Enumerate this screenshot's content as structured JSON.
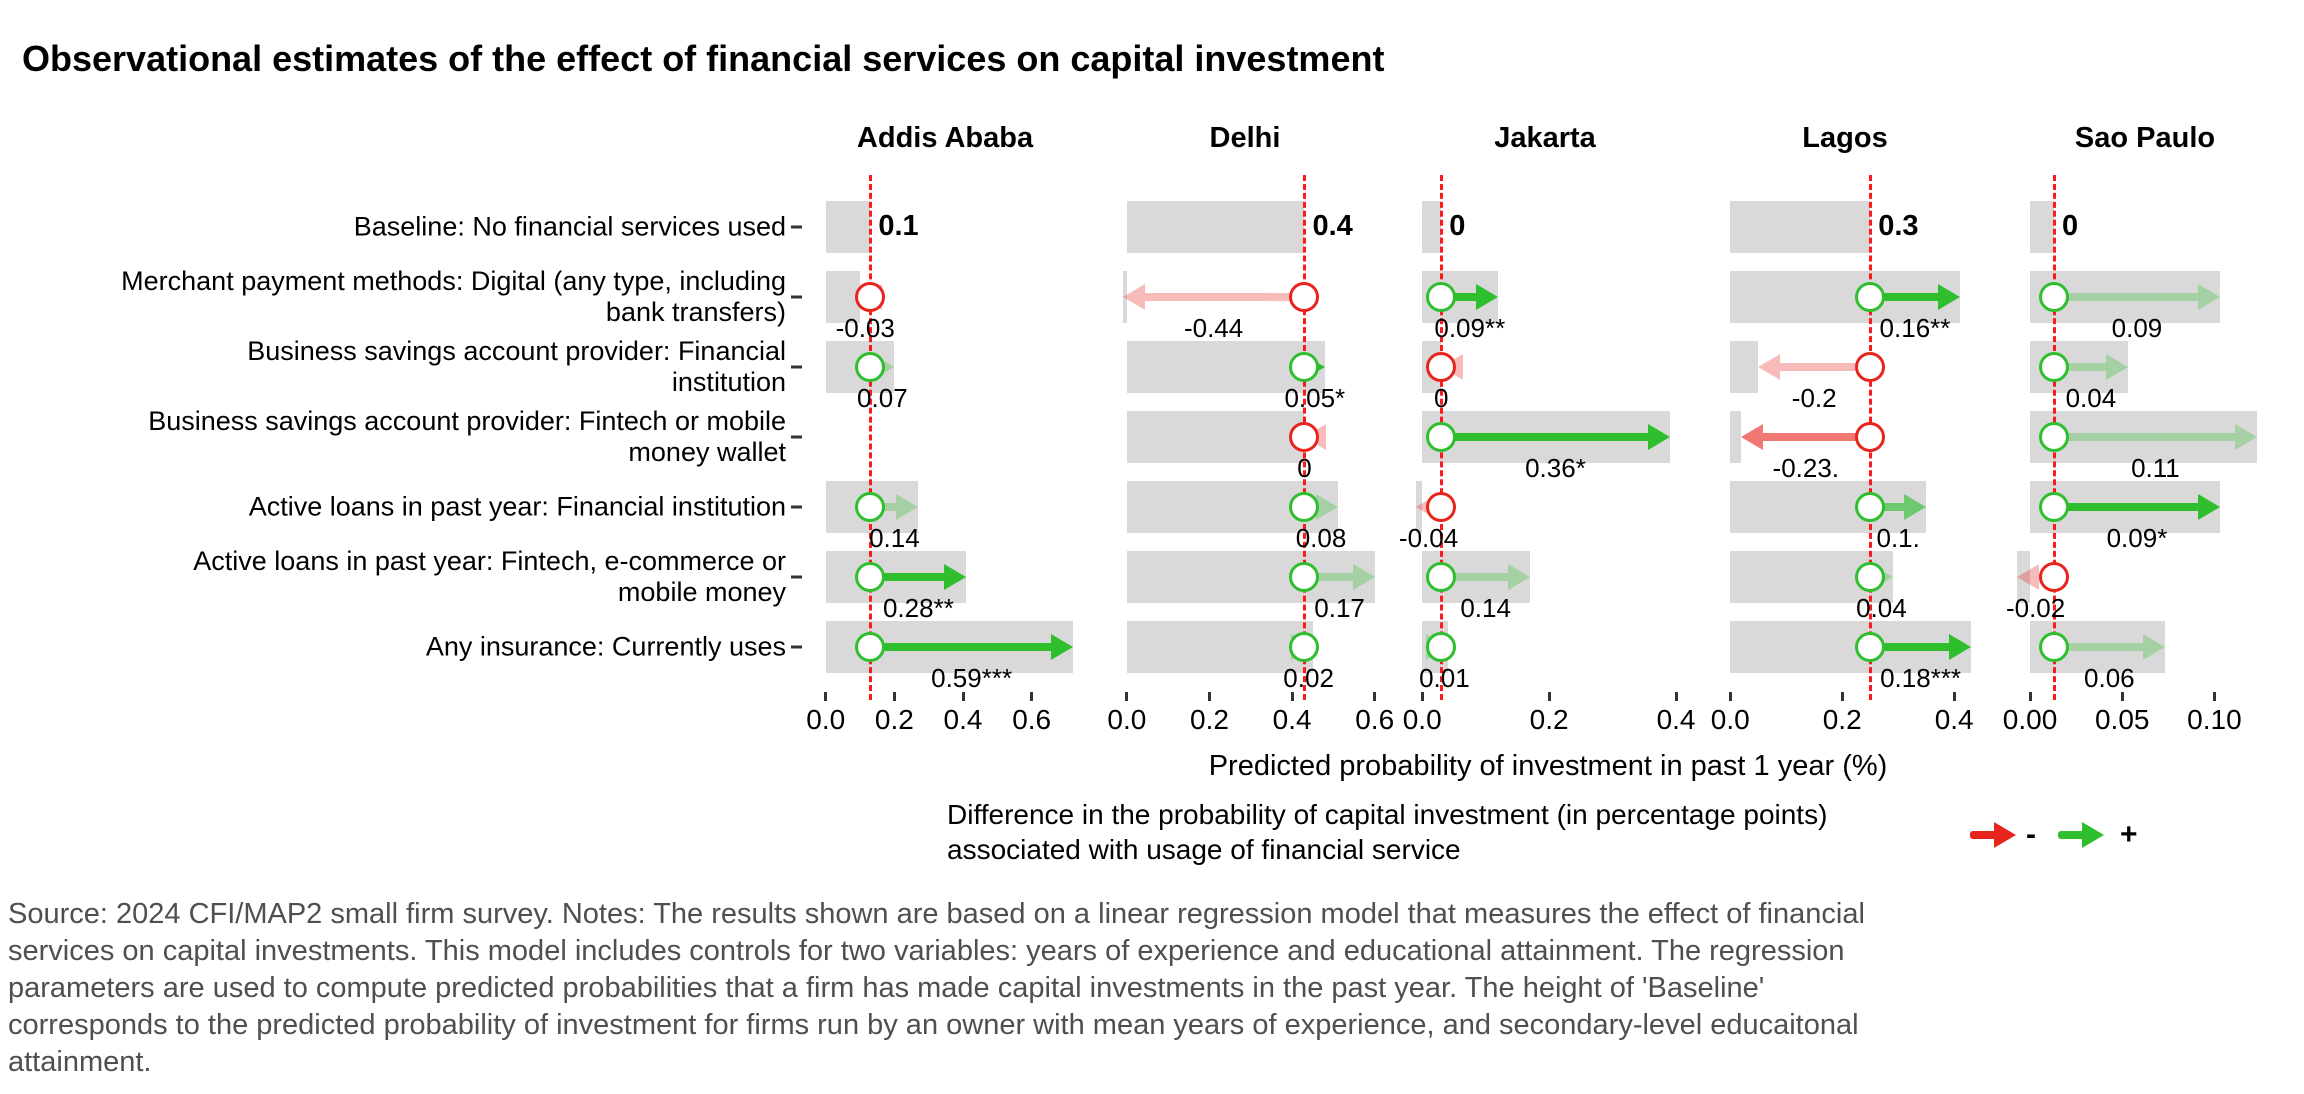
{
  "title": "Observational estimates of the effect of financial services on capital investment",
  "axis_title": "Predicted probability of investment in past 1 year (%)",
  "legend": {
    "text": "Difference in the probability of capital investment (in percentage points)\nassociated with usage of financial service",
    "negative_symbol": "-",
    "positive_symbol": "+"
  },
  "caption": "Source: 2024 CFI/MAP2 small firm survey. Notes: The results shown are based on a linear regression model that measures the effect of financial\nservices on capital investments. This model includes controls for two variables: years of experience and educational attainment. The regression\nparameters are used to compute predicted probabilities that a firm has made capital investments in the past year. The height of 'Baseline'\ncorresponds to the predicted probability of investment for firms run by an owner with mean years of experience, and secondary-level educaitonal\nattainment.",
  "colors": {
    "green": "#2ebe2e",
    "red": "#e8251d",
    "bar_gray": "#d9d9d9",
    "baseline_red": "#fb1b1b"
  },
  "chart_data": {
    "type": "dot-arrow-bar",
    "x_axis_label": "Predicted probability of investment in past 1 year (%)",
    "rows": [
      "Baseline: No financial services used",
      "Merchant payment methods: Digital (any type, including\nbank transfers)",
      "Business savings account provider: Financial\ninstitution",
      "Business savings account provider: Fintech or mobile\nmoney wallet",
      "Active loans in past year: Financial institution",
      "Active loans in past year: Fintech, e-commerce or\nmobile money",
      "Any insurance: Currently uses"
    ],
    "sig_alpha": {
      "none": 0.3,
      ".": 0.62,
      "*": 1,
      "**": 1,
      "***": 1
    },
    "panels": [
      {
        "name": "Addis Ababa",
        "domain": [
          -0.075,
          0.77
        ],
        "ticks": [
          0,
          0.2,
          0.4,
          0.6
        ],
        "tick_labels": [
          "0.0",
          "0.2",
          "0.4",
          "0.6"
        ],
        "baseline": 0.13,
        "baseline_label": "0.1",
        "effects": [
          null,
          {
            "value": -0.03,
            "dir": -1,
            "label": "-0.03",
            "sig": "none"
          },
          {
            "value": 0.07,
            "dir": 1,
            "label": "0.07",
            "sig": "none"
          },
          null,
          {
            "value": 0.14,
            "dir": 1,
            "label": "0.14",
            "sig": "none"
          },
          {
            "value": 0.28,
            "dir": 1,
            "label": "0.28**",
            "sig": "**"
          },
          {
            "value": 0.59,
            "dir": 1,
            "label": "0.59***",
            "sig": "***"
          }
        ]
      },
      {
        "name": "Delhi",
        "domain": [
          -0.065,
          0.637
        ],
        "ticks": [
          0,
          0.2,
          0.4,
          0.6
        ],
        "tick_labels": [
          "0.0",
          "0.2",
          "0.4",
          "0.6"
        ],
        "baseline": 0.43,
        "baseline_label": "0.4",
        "effects": [
          null,
          {
            "value": -0.44,
            "dir": -1,
            "label": "-0.44",
            "sig": "none"
          },
          {
            "value": 0.05,
            "dir": 1,
            "label": "0.05*",
            "sig": "*"
          },
          {
            "value": 0,
            "dir": -1,
            "label": "0",
            "sig": "none"
          },
          {
            "value": 0.08,
            "dir": 1,
            "label": "0.08",
            "sig": "none"
          },
          {
            "value": 0.17,
            "dir": 1,
            "label": "0.17",
            "sig": "none"
          },
          {
            "value": 0.02,
            "dir": 1,
            "label": "0.02",
            "sig": "none"
          }
        ]
      },
      {
        "name": "Jakarta",
        "domain": [
          -0.035,
          0.422
        ],
        "ticks": [
          0,
          0.2,
          0.4
        ],
        "tick_labels": [
          "0.0",
          "0.2",
          "0.4"
        ],
        "baseline": 0.03,
        "baseline_label": "0",
        "effects": [
          null,
          {
            "value": 0.09,
            "dir": 1,
            "label": "0.09**",
            "sig": "**"
          },
          {
            "value": 0,
            "dir": -1,
            "label": "0",
            "sig": "none"
          },
          {
            "value": 0.36,
            "dir": 1,
            "label": "0.36*",
            "sig": "*"
          },
          {
            "value": -0.04,
            "dir": -1,
            "label": "-0.04",
            "sig": "none"
          },
          {
            "value": 0.14,
            "dir": 1,
            "label": "0.14",
            "sig": "none"
          },
          {
            "value": 0.01,
            "dir": 1,
            "label": "0.01",
            "sig": "none"
          }
        ]
      },
      {
        "name": "Lagos",
        "domain": [
          -0.054,
          0.464
        ],
        "ticks": [
          0,
          0.2,
          0.4
        ],
        "tick_labels": [
          "0.0",
          "0.2",
          "0.4"
        ],
        "baseline": 0.25,
        "baseline_label": "0.3",
        "effects": [
          null,
          {
            "value": 0.16,
            "dir": 1,
            "label": "0.16**",
            "sig": "**"
          },
          {
            "value": -0.2,
            "dir": -1,
            "label": "-0.2",
            "sig": "none"
          },
          {
            "value": -0.23,
            "dir": -1,
            "label": "-0.23.",
            "sig": "."
          },
          {
            "value": 0.1,
            "dir": 1,
            "label": "0.1.",
            "sig": "."
          },
          {
            "value": 0.04,
            "dir": 1,
            "label": "0.04",
            "sig": "none"
          },
          {
            "value": 0.18,
            "dir": 1,
            "label": "0.18***",
            "sig": "***"
          }
        ]
      },
      {
        "name": "Sao Paulo",
        "domain": [
          -0.0163,
          0.141
        ],
        "ticks": [
          0,
          0.05,
          0.1
        ],
        "tick_labels": [
          "0.00",
          "0.05",
          "0.10"
        ],
        "baseline": 0.013,
        "baseline_label": "0",
        "effects": [
          null,
          {
            "value": 0.09,
            "dir": 1,
            "label": "0.09",
            "sig": "none"
          },
          {
            "value": 0.04,
            "dir": 1,
            "label": "0.04",
            "sig": "none"
          },
          {
            "value": 0.11,
            "dir": 1,
            "label": "0.11",
            "sig": "none"
          },
          {
            "value": 0.09,
            "dir": 1,
            "label": "0.09*",
            "sig": "*"
          },
          {
            "value": -0.02,
            "dir": -1,
            "label": "-0.02",
            "sig": "none"
          },
          {
            "value": 0.06,
            "dir": 1,
            "label": "0.06",
            "sig": "none"
          }
        ]
      }
    ]
  }
}
